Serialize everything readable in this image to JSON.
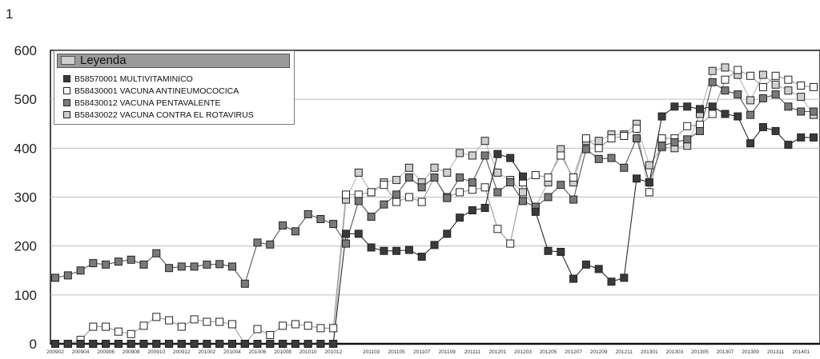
{
  "corner_label": "1",
  "legend": {
    "title": "Leyenda",
    "icon": "line-chart-icon"
  },
  "colors": {
    "series": [
      "#3a3a3a",
      "#ffffff",
      "#7a7a7a",
      "#cfcfcf"
    ],
    "lines": [
      "#2a2a2a",
      "#9a9a9a",
      "#555555",
      "#b5b5b5"
    ]
  },
  "chart_data": {
    "type": "line",
    "ylim": [
      0,
      600
    ],
    "yticks": [
      0,
      100,
      200,
      300,
      400,
      500,
      600
    ],
    "grid": true,
    "legend_position": "top-left",
    "x_tick_labels": [
      "200902",
      "200904",
      "200906",
      "200908",
      "200910",
      "200912",
      "201002",
      "201004",
      "201006",
      "201008",
      "201010",
      "201012",
      "201103",
      "201105",
      "201107",
      "201109",
      "201111",
      "201201",
      "201203",
      "201205",
      "201207",
      "201209",
      "201211",
      "201301",
      "201303",
      "201305",
      "201307",
      "201309",
      "201311",
      "201401"
    ],
    "x": [
      "200902",
      "200903",
      "200904",
      "200905",
      "200906",
      "200907",
      "200908",
      "200909",
      "200910",
      "200911",
      "200912",
      "201001",
      "201002",
      "201003",
      "201004",
      "201005",
      "201006",
      "201007",
      "201008",
      "201009",
      "201010",
      "201011",
      "201012",
      "201101",
      "201102",
      "201103",
      "201104",
      "201105",
      "201106",
      "201107",
      "201108",
      "201109",
      "201110",
      "201111",
      "201112",
      "201201",
      "201202",
      "201203",
      "201204",
      "201205",
      "201206",
      "201207",
      "201208",
      "201209",
      "201210",
      "201211",
      "201212",
      "201301",
      "201302",
      "201303",
      "201304",
      "201305",
      "201306",
      "201307",
      "201308",
      "201309",
      "201310",
      "201311",
      "201312",
      "201401",
      "201402"
    ],
    "series": [
      {
        "name": "B58570001 MULTIVITAMINICO",
        "values": [
          0,
          0,
          0,
          0,
          0,
          0,
          0,
          0,
          0,
          0,
          0,
          0,
          0,
          0,
          0,
          0,
          0,
          0,
          0,
          0,
          0,
          0,
          0,
          225,
          225,
          197,
          190,
          190,
          192,
          178,
          202,
          225,
          258,
          273,
          278,
          388,
          380,
          342,
          270,
          190,
          188,
          133,
          162,
          153,
          127,
          135,
          338,
          330,
          465,
          485,
          485,
          480,
          485,
          470,
          465,
          410,
          443,
          435,
          407,
          422,
          422
        ]
      },
      {
        "name": "B58430001 VACUNA ANTINEUMOCOCICA",
        "values": [
          0,
          0,
          8,
          35,
          35,
          25,
          20,
          37,
          55,
          48,
          35,
          50,
          45,
          45,
          40,
          0,
          30,
          18,
          37,
          40,
          37,
          32,
          32,
          305,
          305,
          310,
          325,
          290,
          300,
          290,
          340,
          300,
          310,
          315,
          320,
          235,
          205,
          330,
          345,
          340,
          385,
          340,
          420,
          400,
          420,
          425,
          440,
          310,
          420,
          420,
          445,
          448,
          470,
          540,
          560,
          548,
          525,
          548,
          540,
          528,
          525
        ]
      },
      {
        "name": "B58430012 VACUNA PENTAVALENTE",
        "values": [
          135,
          140,
          150,
          165,
          162,
          168,
          172,
          162,
          185,
          155,
          158,
          158,
          162,
          163,
          158,
          123,
          207,
          203,
          242,
          230,
          265,
          255,
          245,
          205,
          292,
          260,
          285,
          305,
          340,
          320,
          340,
          298,
          340,
          330,
          385,
          310,
          330,
          292,
          280,
          300,
          325,
          295,
          398,
          378,
          380,
          360,
          420,
          330,
          405,
          412,
          418,
          435,
          535,
          518,
          510,
          468,
          502,
          510,
          485,
          475,
          475
        ]
      },
      {
        "name": "B58430022 VACUNA CONTRA EL ROTAVIRUS",
        "values": [
          0,
          0,
          0,
          0,
          0,
          0,
          0,
          0,
          0,
          0,
          0,
          0,
          0,
          0,
          0,
          0,
          0,
          0,
          0,
          0,
          0,
          0,
          0,
          295,
          350,
          310,
          330,
          335,
          360,
          330,
          360,
          350,
          390,
          385,
          415,
          350,
          335,
          310,
          280,
          330,
          398,
          330,
          415,
          415,
          428,
          428,
          450,
          365,
          402,
          400,
          405,
          470,
          558,
          565,
          550,
          498,
          550,
          530,
          518,
          505,
          468
        ]
      }
    ]
  }
}
